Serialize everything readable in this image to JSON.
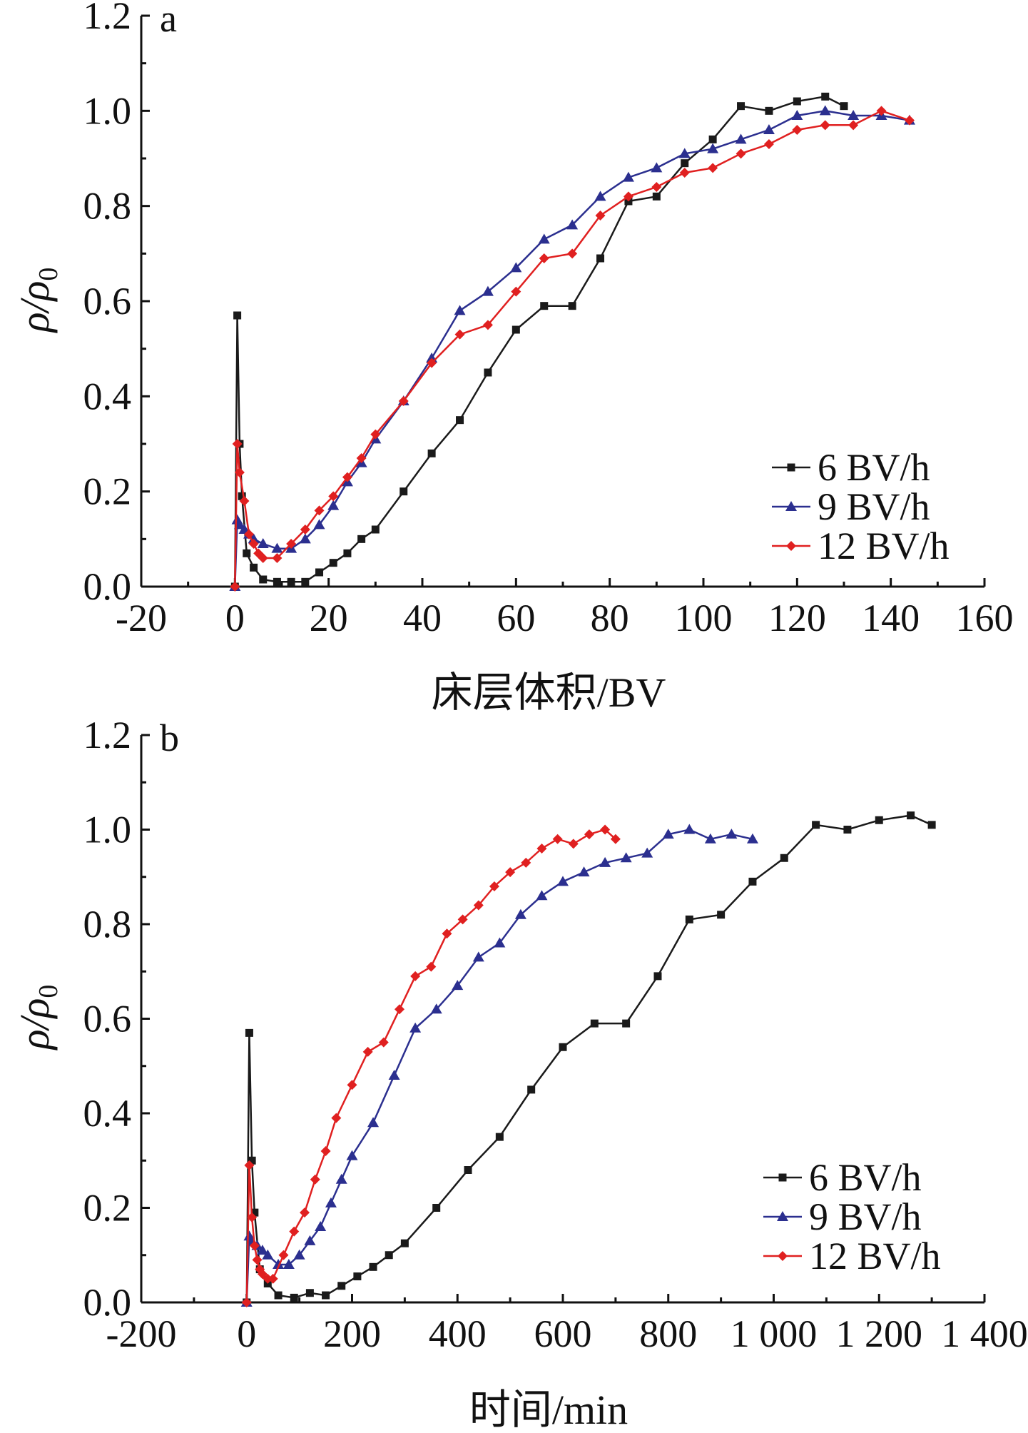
{
  "chart_data": [
    {
      "panel": "a",
      "type": "line",
      "xlabel": "床层体积/BV",
      "ylabel_main": "ρ/ρ",
      "ylabel_sub": "0",
      "xlim": [
        -20,
        160
      ],
      "ylim": [
        0.0,
        1.2
      ],
      "xticks": [
        -20,
        0,
        20,
        40,
        60,
        80,
        100,
        120,
        140,
        160
      ],
      "xtick_labels": [
        "-20",
        "0",
        "20",
        "40",
        "60",
        "80",
        "100",
        "120",
        "140",
        "160"
      ],
      "yticks": [
        0.0,
        0.2,
        0.4,
        0.6,
        0.8,
        1.0,
        1.2
      ],
      "ytick_labels": [
        "0.0",
        "0.2",
        "0.4",
        "0.6",
        "0.8",
        "1.0",
        "1.2"
      ],
      "legend_position": "bottom-right",
      "series": [
        {
          "name": "6 BV/h",
          "color": "#1a1a1a",
          "marker": "square",
          "x": [
            0,
            0.5,
            1,
            1.5,
            2.5,
            4,
            6,
            9,
            12,
            15,
            18,
            21,
            24,
            27,
            30,
            36,
            42,
            48,
            54,
            60,
            66,
            72,
            78,
            84,
            90,
            96,
            102,
            108,
            114,
            120,
            126,
            130
          ],
          "y": [
            0.0,
            0.57,
            0.3,
            0.19,
            0.07,
            0.04,
            0.015,
            0.01,
            0.01,
            0.01,
            0.03,
            0.05,
            0.07,
            0.1,
            0.12,
            0.2,
            0.28,
            0.35,
            0.45,
            0.54,
            0.59,
            0.59,
            0.69,
            0.81,
            0.82,
            0.89,
            0.94,
            1.01,
            1.0,
            1.02,
            1.03,
            1.01
          ]
        },
        {
          "name": "9 BV/h",
          "color": "#2b2f8f",
          "marker": "triangle",
          "x": [
            0,
            0.5,
            1,
            2,
            3,
            4,
            6,
            9,
            12,
            15,
            18,
            21,
            24,
            27,
            30,
            36,
            42,
            48,
            54,
            60,
            66,
            72,
            78,
            84,
            90,
            96,
            102,
            108,
            114,
            120,
            126,
            132,
            138,
            144
          ],
          "y": [
            0.0,
            0.14,
            0.13,
            0.12,
            0.11,
            0.1,
            0.09,
            0.08,
            0.08,
            0.1,
            0.13,
            0.17,
            0.22,
            0.26,
            0.31,
            0.39,
            0.48,
            0.58,
            0.62,
            0.67,
            0.73,
            0.76,
            0.82,
            0.86,
            0.88,
            0.91,
            0.92,
            0.94,
            0.96,
            0.99,
            1.0,
            0.99,
            0.99,
            0.98
          ]
        },
        {
          "name": "12 BV/h",
          "color": "#e02020",
          "marker": "diamond",
          "x": [
            0,
            0.5,
            1,
            2,
            3,
            4,
            5,
            6,
            9,
            12,
            15,
            18,
            21,
            24,
            27,
            30,
            36,
            42,
            48,
            54,
            60,
            66,
            72,
            78,
            84,
            90,
            96,
            102,
            108,
            114,
            120,
            126,
            132,
            138,
            144
          ],
          "y": [
            0.0,
            0.3,
            0.24,
            0.18,
            0.11,
            0.09,
            0.07,
            0.06,
            0.06,
            0.09,
            0.12,
            0.16,
            0.19,
            0.23,
            0.27,
            0.32,
            0.39,
            0.47,
            0.53,
            0.55,
            0.62,
            0.69,
            0.7,
            0.78,
            0.82,
            0.84,
            0.87,
            0.88,
            0.91,
            0.93,
            0.96,
            0.97,
            0.97,
            1.0,
            0.98
          ]
        }
      ]
    },
    {
      "panel": "b",
      "type": "line",
      "xlabel": "时间/min",
      "ylabel_main": "ρ/ρ",
      "ylabel_sub": "0",
      "xlim": [
        -200,
        1400
      ],
      "ylim": [
        0.0,
        1.2
      ],
      "xticks": [
        -200,
        0,
        200,
        400,
        600,
        800,
        1000,
        1200,
        1400
      ],
      "xtick_labels": [
        "-200",
        "0",
        "200",
        "400",
        "600",
        "800",
        "1 000",
        "1 200",
        "1 400"
      ],
      "yticks": [
        0.0,
        0.2,
        0.4,
        0.6,
        0.8,
        1.0,
        1.2
      ],
      "ytick_labels": [
        "0.0",
        "0.2",
        "0.4",
        "0.6",
        "0.8",
        "1.0",
        "1.2"
      ],
      "legend_position": "bottom-right",
      "series": [
        {
          "name": "6 BV/h",
          "color": "#1a1a1a",
          "marker": "square",
          "x": [
            0,
            5,
            10,
            15,
            25,
            40,
            60,
            90,
            120,
            150,
            180,
            210,
            240,
            270,
            300,
            360,
            420,
            480,
            540,
            600,
            660,
            720,
            780,
            840,
            900,
            960,
            1020,
            1080,
            1140,
            1200,
            1260,
            1300
          ],
          "y": [
            0.0,
            0.57,
            0.3,
            0.19,
            0.07,
            0.04,
            0.015,
            0.01,
            0.02,
            0.015,
            0.035,
            0.055,
            0.075,
            0.1,
            0.125,
            0.2,
            0.28,
            0.35,
            0.45,
            0.54,
            0.59,
            0.59,
            0.69,
            0.81,
            0.82,
            0.89,
            0.94,
            1.01,
            1.0,
            1.02,
            1.03,
            1.01
          ]
        },
        {
          "name": "9 BV/h",
          "color": "#2b2f8f",
          "marker": "triangle",
          "x": [
            0,
            5,
            10,
            20,
            30,
            40,
            60,
            80,
            100,
            120,
            140,
            160,
            180,
            200,
            240,
            280,
            320,
            360,
            400,
            440,
            480,
            520,
            560,
            600,
            640,
            680,
            720,
            760,
            800,
            840,
            880,
            920,
            960
          ],
          "y": [
            0.0,
            0.14,
            0.13,
            0.12,
            0.11,
            0.1,
            0.08,
            0.08,
            0.1,
            0.13,
            0.16,
            0.21,
            0.26,
            0.31,
            0.38,
            0.48,
            0.58,
            0.62,
            0.67,
            0.73,
            0.76,
            0.82,
            0.86,
            0.89,
            0.91,
            0.93,
            0.94,
            0.95,
            0.99,
            1.0,
            0.98,
            0.99,
            0.98
          ]
        },
        {
          "name": "12 BV/h",
          "color": "#e02020",
          "marker": "diamond",
          "x": [
            0,
            5,
            10,
            15,
            20,
            25,
            30,
            40,
            50,
            70,
            90,
            110,
            130,
            150,
            170,
            200,
            230,
            260,
            290,
            320,
            350,
            380,
            410,
            440,
            470,
            500,
            530,
            560,
            590,
            620,
            650,
            680,
            700
          ],
          "y": [
            0.0,
            0.29,
            0.18,
            0.12,
            0.09,
            0.07,
            0.06,
            0.05,
            0.05,
            0.1,
            0.15,
            0.19,
            0.26,
            0.32,
            0.39,
            0.46,
            0.53,
            0.55,
            0.62,
            0.69,
            0.71,
            0.78,
            0.81,
            0.84,
            0.88,
            0.91,
            0.93,
            0.96,
            0.98,
            0.97,
            0.99,
            1.0,
            0.98
          ]
        }
      ]
    }
  ]
}
